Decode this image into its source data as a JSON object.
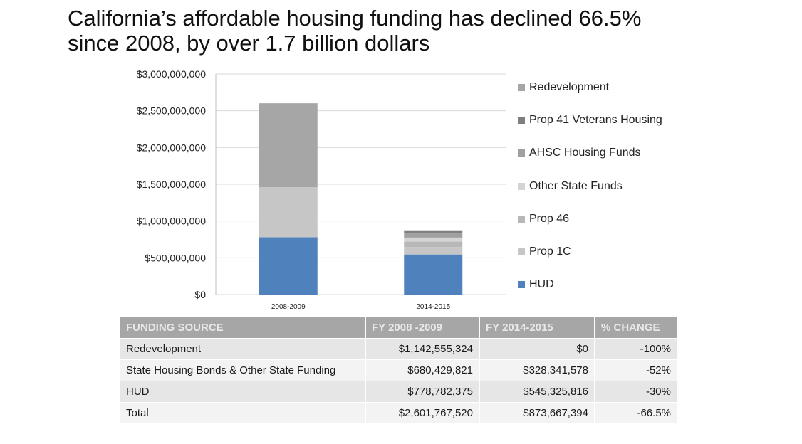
{
  "title": {
    "line1": "California’s affordable housing funding has declined 66.5%",
    "line2": "since 2008, by over 1.7 billion dollars"
  },
  "chart_data": {
    "type": "bar",
    "stacked": true,
    "categories": [
      "2008-2009",
      "2014-2015"
    ],
    "ylim": [
      0,
      3000000000
    ],
    "yticks": [
      {
        "value": 0,
        "label": "$0"
      },
      {
        "value": 500000000,
        "label": "$500,000,000"
      },
      {
        "value": 1000000000,
        "label": "$1,000,000,000"
      },
      {
        "value": 1500000000,
        "label": "$1,500,000,000"
      },
      {
        "value": 2000000000,
        "label": "$2,000,000,000"
      },
      {
        "value": 2500000000,
        "label": "$2,500,000,000"
      },
      {
        "value": 3000000000,
        "label": "$3,000,000,000"
      }
    ],
    "grid": true,
    "legend_position": "right",
    "series": [
      {
        "name": "HUD",
        "color": "#4f81bd",
        "values": [
          778782375,
          545325816
        ]
      },
      {
        "name": "Prop 1C",
        "color": "#c6c6c6",
        "values": [
          680429821,
          100000000
        ]
      },
      {
        "name": "Prop 46",
        "color": "#b8b8b8",
        "values": [
          0,
          75000000
        ]
      },
      {
        "name": "Other State Funds",
        "color": "#d4d4d4",
        "values": [
          0,
          55000000
        ]
      },
      {
        "name": "AHSC Housing Funds",
        "color": "#a0a0a0",
        "values": [
          0,
          55000000
        ]
      },
      {
        "name": "Prop 41 Veterans Housing",
        "color": "#7f7f7f",
        "values": [
          0,
          43341578
        ]
      },
      {
        "name": "Redevelopment",
        "color": "#a6a6a6",
        "values": [
          1142555324,
          0
        ]
      }
    ]
  },
  "legend": {
    "items": [
      {
        "label": "Redevelopment",
        "color": "#a6a6a6"
      },
      {
        "label": "Prop 41 Veterans Housing",
        "color": "#7f7f7f"
      },
      {
        "label": "AHSC Housing Funds",
        "color": "#a0a0a0"
      },
      {
        "label": "Other State Funds",
        "color": "#d4d4d4"
      },
      {
        "label": "Prop 46",
        "color": "#b8b8b8"
      },
      {
        "label": "Prop 1C",
        "color": "#c6c6c6"
      },
      {
        "label": "HUD",
        "color": "#4f81bd"
      }
    ]
  },
  "table": {
    "headers": [
      "FUNDING SOURCE",
      "FY 2008 -2009",
      "FY 2014-2015",
      "% CHANGE"
    ],
    "rows": [
      [
        "Redevelopment",
        "$1,142,555,324",
        "$0",
        "-100%"
      ],
      [
        "State Housing Bonds & Other State Funding",
        "$680,429,821",
        "$328,341,578",
        "-52%"
      ],
      [
        "HUD",
        "$778,782,375",
        "$545,325,816",
        "-30%"
      ],
      [
        "Total",
        "$2,601,767,520",
        "$873,667,394",
        "-66.5%"
      ]
    ]
  }
}
